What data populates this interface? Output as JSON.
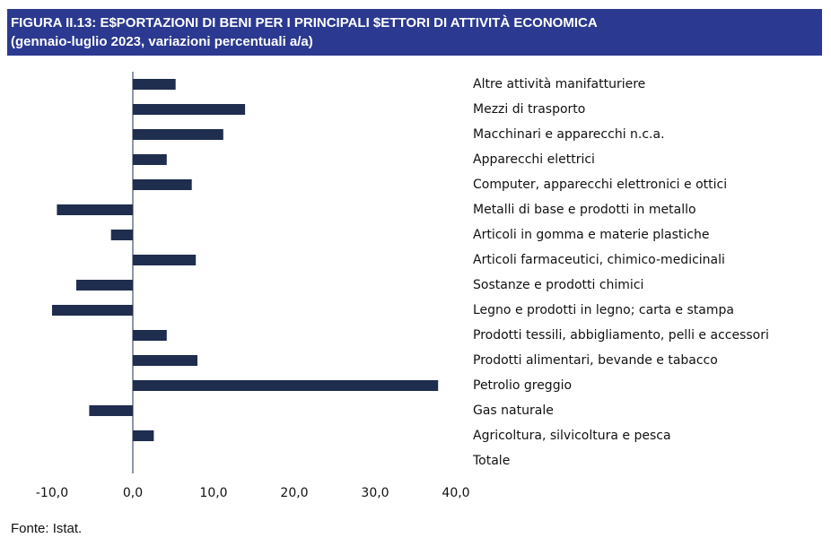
{
  "chart_data": {
    "type": "barh",
    "title": "FIGURA II.13: E$PORTAZIONI DI BENI PER I PRINCIPALI $ETTORI DI ATTIVITÀ ECONOMICA",
    "subtitle": "(gennaio-luglio 2023, variazioni percentuali a/a)",
    "categories": [
      "Altre attività manifatturiere",
      "Mezzi di trasporto",
      "Macchinari e apparecchi n.c.a.",
      "Apparecchi elettrici",
      "Computer, apparecchi elettronici e ottici",
      "Metalli di base e prodotti in metallo",
      "Articoli in gomma e materie plastiche",
      "Articoli farmaceutici, chimico-medicinali",
      "Sostanze e prodotti chimici",
      "Legno e prodotti in legno; carta e stampa",
      "Prodotti tessili, abbigliamento, pelli e accessori",
      "Prodotti alimentari, bevande e tabacco",
      "Petrolio greggio",
      "Gas naturale",
      "Agricoltura, silvicoltura e pesca",
      "Totale"
    ],
    "values": [
      5.3,
      13.9,
      11.2,
      4.2,
      7.3,
      -9.4,
      -2.7,
      7.8,
      -7.0,
      -10.0,
      4.2,
      8.0,
      37.8,
      -5.4,
      2.6,
      0
    ],
    "color": "#1f2d4e",
    "xlim": [
      -10,
      40
    ],
    "xticks": [
      {
        "value": -10,
        "label": "-10,0"
      },
      {
        "value": 0,
        "label": "0,0"
      },
      {
        "value": 10,
        "label": "10,0"
      },
      {
        "value": 20,
        "label": "20,0"
      },
      {
        "value": 30,
        "label": "30,0"
      },
      {
        "value": 40,
        "label": "40,0"
      }
    ],
    "source": "Fonte: Istat."
  }
}
